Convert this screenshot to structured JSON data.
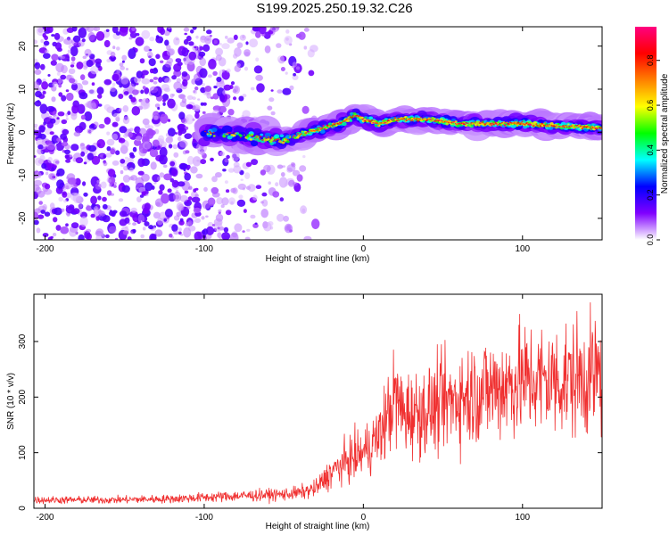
{
  "title": "S199.2025.250.19.32.C26",
  "chart_data": [
    {
      "type": "heatmap",
      "xlabel": "Height of straight line (km)",
      "ylabel": "Frequency (Hz)",
      "xlim": [
        -207,
        150
      ],
      "ylim": [
        -25,
        24.5
      ],
      "xticks": [
        -200,
        -100,
        0,
        100
      ],
      "yticks": [
        -20,
        -10,
        0,
        10,
        20
      ],
      "colorbar": {
        "label": "Normalized spectral amplitude",
        "range": [
          0,
          0.95
        ],
        "ticks": [
          "0.0",
          "0.2",
          "0.4",
          "0.6",
          "0.8"
        ],
        "colormap": [
          "#ffffff",
          "#8000ff",
          "#0000ff",
          "#00ffff",
          "#00ff00",
          "#ffff00",
          "#ff8000",
          "#ff0000",
          "#ff0080"
        ]
      },
      "ridge": {
        "x": [
          -95,
          -70,
          -50,
          -35,
          -25,
          -15,
          -5,
          0,
          10,
          20,
          40,
          60,
          80,
          100,
          120,
          150
        ],
        "freq": [
          0,
          -1,
          -2,
          0,
          1,
          2,
          4,
          3,
          2,
          3,
          3,
          2,
          2,
          2,
          1.5,
          1
        ]
      }
    },
    {
      "type": "line",
      "xlabel": "Height of straight line (km)",
      "ylabel": "SNR (10 * v/v)",
      "xlim": [
        -207,
        150
      ],
      "ylim": [
        0,
        385
      ],
      "xticks": [
        -200,
        -100,
        0,
        100
      ],
      "yticks": [
        0,
        100,
        200,
        300
      ],
      "color": "#f03030",
      "envelope": {
        "x": [
          -207,
          -160,
          -120,
          -80,
          -50,
          -40,
          -30,
          -20,
          -10,
          0,
          10,
          20,
          25,
          40,
          60,
          80,
          100,
          120,
          150
        ],
        "mean": [
          15,
          15,
          17,
          22,
          25,
          28,
          35,
          65,
          85,
          100,
          130,
          200,
          170,
          175,
          200,
          215,
          230,
          230,
          240
        ]
      }
    }
  ]
}
